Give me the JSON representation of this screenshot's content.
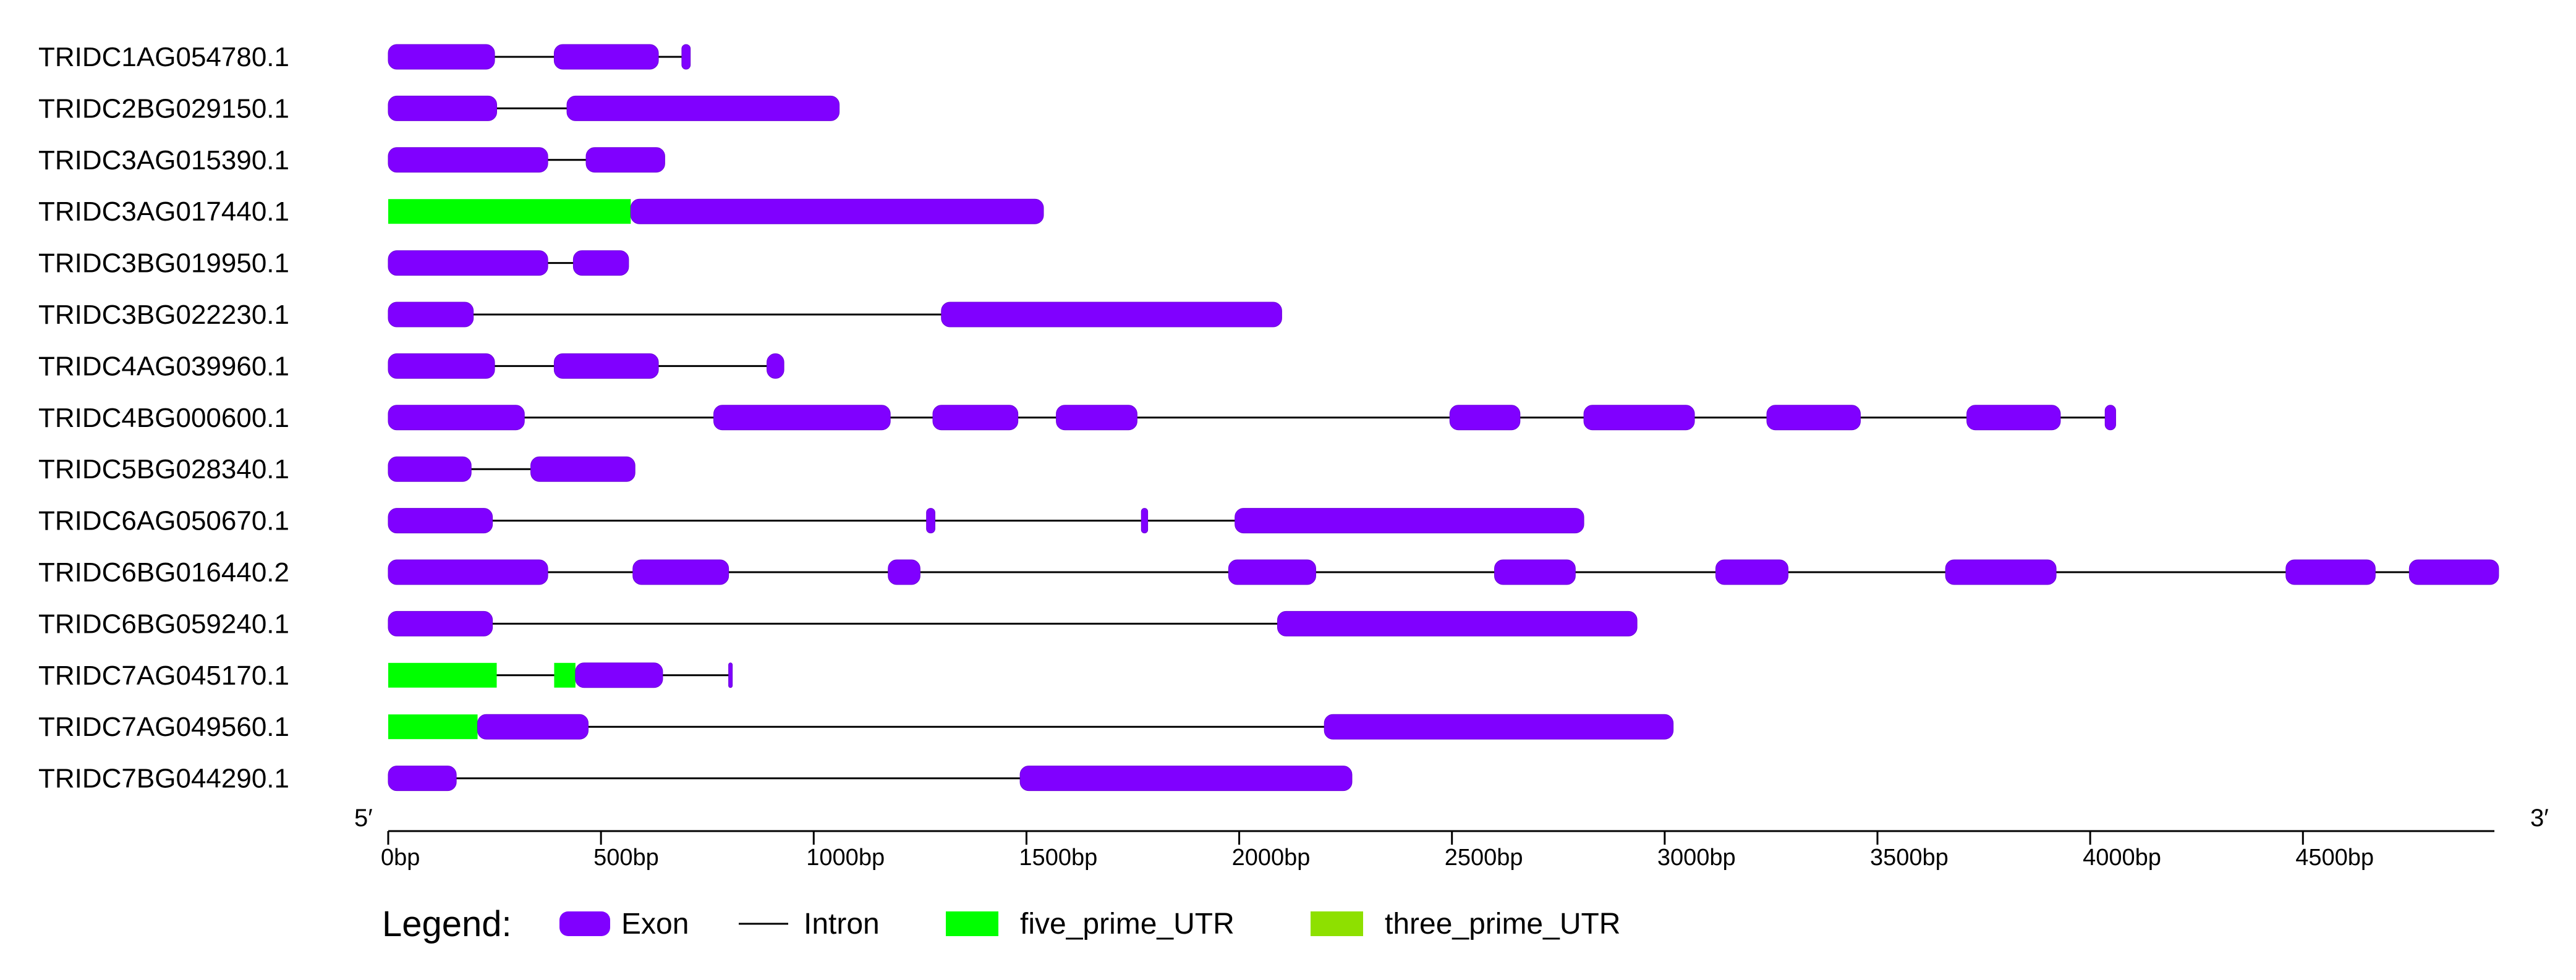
{
  "chart_data": {
    "type": "gene-structure",
    "x_unit": "bp",
    "xlim": [
      0,
      4950
    ],
    "x_ticks": [
      0,
      500,
      1000,
      1500,
      2000,
      2500,
      3000,
      3500,
      4000,
      4500
    ],
    "x_tick_labels": [
      "0bp",
      "500bp",
      "1000bp",
      "1500bp",
      "2000bp",
      "2500bp",
      "3000bp",
      "3500bp",
      "4000bp",
      "4500bp"
    ],
    "five_prime_label": "5′",
    "three_prime_label": "3′",
    "colors": {
      "exon": "#8000ff",
      "exon_stroke": "#6a00d8",
      "intron": "#000000",
      "five_prime_UTR": "#00ff00",
      "three_prime_UTR": "#8ee000"
    },
    "genes": [
      {
        "name": "TRIDC1AG054780.1",
        "length": 700,
        "exons": [
          [
            0,
            250
          ],
          [
            390,
            635
          ],
          [
            690,
            710
          ]
        ],
        "five_prime_UTR": [],
        "three_prime_UTR": []
      },
      {
        "name": "TRIDC2BG029150.1",
        "length": 1060,
        "exons": [
          [
            0,
            255
          ],
          [
            420,
            1060
          ]
        ],
        "five_prime_UTR": [],
        "three_prime_UTR": []
      },
      {
        "name": "TRIDC3AG015390.1",
        "length": 650,
        "exons": [
          [
            0,
            375
          ],
          [
            465,
            650
          ]
        ],
        "five_prime_UTR": [],
        "three_prime_UTR": []
      },
      {
        "name": "TRIDC3AG017440.1",
        "length": 1540,
        "exons": [
          [
            570,
            1540
          ]
        ],
        "five_prime_UTR": [
          [
            0,
            570
          ]
        ],
        "three_prime_UTR": []
      },
      {
        "name": "TRIDC3BG019950.1",
        "length": 565,
        "exons": [
          [
            0,
            375
          ],
          [
            435,
            565
          ]
        ],
        "five_prime_UTR": [],
        "three_prime_UTR": []
      },
      {
        "name": "TRIDC3BG022230.1",
        "length": 2100,
        "exons": [
          [
            0,
            200
          ],
          [
            1300,
            2100
          ]
        ],
        "five_prime_UTR": [],
        "three_prime_UTR": []
      },
      {
        "name": "TRIDC4AG039960.1",
        "length": 930,
        "exons": [
          [
            0,
            250
          ],
          [
            390,
            635
          ],
          [
            890,
            930
          ]
        ],
        "five_prime_UTR": [],
        "three_prime_UTR": []
      },
      {
        "name": "TRIDC4BG000600.1",
        "length": 4060,
        "exons": [
          [
            0,
            320
          ],
          [
            765,
            1180
          ],
          [
            1280,
            1480
          ],
          [
            1570,
            1760
          ],
          [
            2495,
            2660
          ],
          [
            2810,
            3070
          ],
          [
            3240,
            3460
          ],
          [
            3710,
            3930
          ],
          [
            4035,
            4060
          ]
        ],
        "five_prime_UTR": [],
        "three_prime_UTR": []
      },
      {
        "name": "TRIDC5BG028340.1",
        "length": 580,
        "exons": [
          [
            0,
            195
          ],
          [
            335,
            580
          ]
        ],
        "five_prime_UTR": [],
        "three_prime_UTR": []
      },
      {
        "name": "TRIDC6AG050670.1",
        "length": 2810,
        "exons": [
          [
            0,
            245
          ],
          [
            1265,
            1285
          ],
          [
            1770,
            1785
          ],
          [
            1990,
            2810
          ]
        ],
        "five_prime_UTR": [],
        "three_prime_UTR": []
      },
      {
        "name": "TRIDC6BG016440.2",
        "length": 4960,
        "exons": [
          [
            0,
            375
          ],
          [
            575,
            800
          ],
          [
            1175,
            1250
          ],
          [
            1975,
            2180
          ],
          [
            2600,
            2790
          ],
          [
            3120,
            3290
          ],
          [
            3660,
            3920
          ],
          [
            4460,
            4670
          ],
          [
            4750,
            4960
          ]
        ],
        "five_prime_UTR": [],
        "three_prime_UTR": []
      },
      {
        "name": "TRIDC6BG059240.1",
        "length": 2935,
        "exons": [
          [
            0,
            245
          ],
          [
            2090,
            2935
          ]
        ],
        "five_prime_UTR": [],
        "three_prime_UTR": []
      },
      {
        "name": "TRIDC7AG045170.1",
        "length": 805,
        "exons": [
          [
            440,
            645
          ],
          [
            800,
            805
          ]
        ],
        "five_prime_UTR": [
          [
            0,
            255
          ],
          [
            390,
            440
          ]
        ],
        "three_prime_UTR": []
      },
      {
        "name": "TRIDC7AG049560.1",
        "length": 3020,
        "exons": [
          [
            210,
            470
          ],
          [
            2200,
            3020
          ]
        ],
        "five_prime_UTR": [
          [
            0,
            210
          ]
        ],
        "three_prime_UTR": []
      },
      {
        "name": "TRIDC7BG044290.1",
        "length": 2265,
        "exons": [
          [
            0,
            160
          ],
          [
            1485,
            2265
          ]
        ],
        "five_prime_UTR": [],
        "three_prime_UTR": []
      }
    ],
    "legend": {
      "title": "Legend:",
      "items": [
        {
          "key": "exon",
          "label": "Exon",
          "shape": "rounded-rect",
          "color": "#8000ff"
        },
        {
          "key": "intron",
          "label": "Intron",
          "shape": "line",
          "color": "#000000"
        },
        {
          "key": "five_prime_UTR",
          "label": "five_prime_UTR",
          "shape": "rect",
          "color": "#00ff00"
        },
        {
          "key": "three_prime_UTR",
          "label": "three_prime_UTR",
          "shape": "rect",
          "color": "#8ee000"
        }
      ]
    }
  }
}
